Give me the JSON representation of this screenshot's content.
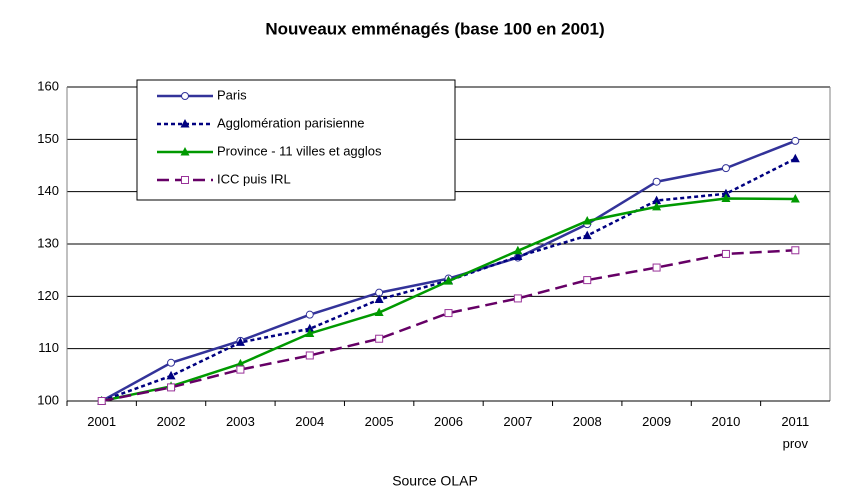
{
  "chart_data": {
    "type": "line",
    "title": "Nouveaux emménagés (base 100 en 2001)",
    "xlabel": "Source OLAP",
    "categories": [
      "2001",
      "2002",
      "2003",
      "2004",
      "2005",
      "2006",
      "2007",
      "2008",
      "2009",
      "2010",
      "2011 prov"
    ],
    "series": [
      {
        "name": "Paris",
        "color": "#333399",
        "marker": "circle",
        "line_style": "solid",
        "values": [
          100,
          107.3,
          111.5,
          116.5,
          120.7,
          123.4,
          127.4,
          133.8,
          141.9,
          144.5,
          149.7
        ]
      },
      {
        "name": "Agglomération parisienne",
        "color": "#000080",
        "marker": "triangle",
        "line_style": "dotted",
        "values": [
          100,
          104.8,
          111.2,
          113.8,
          119.4,
          123.0,
          127.6,
          131.6,
          138.3,
          139.6,
          146.3
        ]
      },
      {
        "name": "Province - 11 villes et agglos",
        "color": "#009900",
        "marker": "triangle",
        "line_style": "solid",
        "values": [
          100,
          102.8,
          107.1,
          112.9,
          116.9,
          122.9,
          128.7,
          134.4,
          137.1,
          138.7,
          138.6
        ]
      },
      {
        "name": "ICC puis IRL",
        "color": "#660066",
        "marker": "square",
        "line_style": "dashed",
        "values": [
          100,
          102.6,
          106.0,
          108.7,
          111.9,
          116.8,
          119.6,
          123.1,
          125.5,
          128.1,
          128.8
        ]
      }
    ],
    "ylim": [
      100,
      160
    ],
    "yticks": [
      100,
      110,
      120,
      130,
      140,
      150,
      160
    ],
    "grid": true,
    "legend": "upper left"
  }
}
